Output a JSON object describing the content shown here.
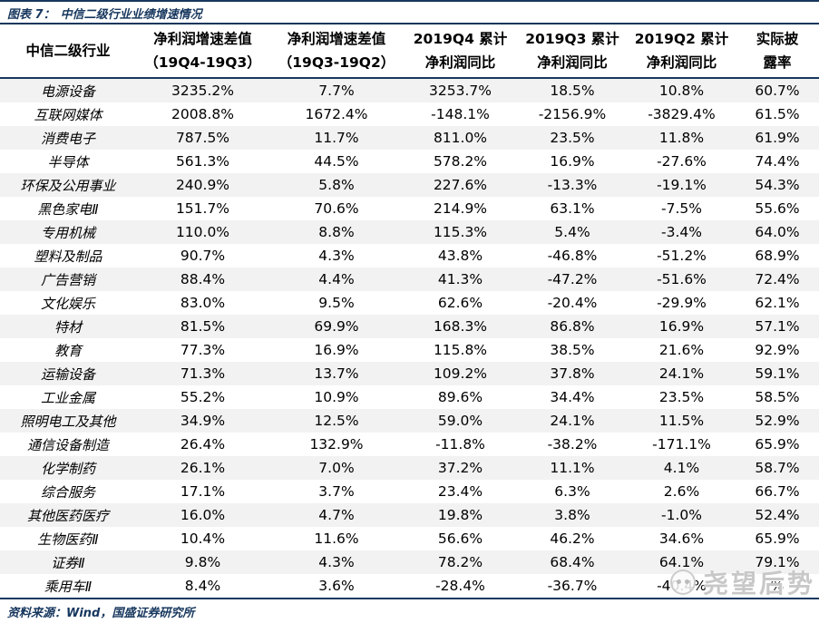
{
  "title": {
    "figure_label": "图表 7：",
    "text": "中信二级行业业绩增速情况"
  },
  "table": {
    "columns": [
      {
        "line1": "中信二级行业",
        "line2": ""
      },
      {
        "line1": "净利润增速差值",
        "line2": "（19Q4-19Q3）"
      },
      {
        "line1": "净利润增速差值",
        "line2": "（19Q3-19Q2）"
      },
      {
        "line1": "2019Q4 累计",
        "line2": "净利润同比"
      },
      {
        "line1": "2019Q3 累计",
        "line2": "净利润同比"
      },
      {
        "line1": "2019Q2 累计",
        "line2": "净利润同比"
      },
      {
        "line1": "实际披",
        "line2": "露率"
      }
    ],
    "rows": [
      [
        "电源设备",
        "3235.2%",
        "7.7%",
        "3253.7%",
        "18.5%",
        "10.8%",
        "60.7%"
      ],
      [
        "互联网媒体",
        "2008.8%",
        "1672.4%",
        "-148.1%",
        "-2156.9%",
        "-3829.4%",
        "61.5%"
      ],
      [
        "消费电子",
        "787.5%",
        "11.7%",
        "811.0%",
        "23.5%",
        "11.8%",
        "61.9%"
      ],
      [
        "半导体",
        "561.3%",
        "44.5%",
        "578.2%",
        "16.9%",
        "-27.6%",
        "74.4%"
      ],
      [
        "环保及公用事业",
        "240.9%",
        "5.8%",
        "227.6%",
        "-13.3%",
        "-19.1%",
        "54.3%"
      ],
      [
        "黑色家电Ⅱ",
        "151.7%",
        "70.6%",
        "214.9%",
        "63.1%",
        "-7.5%",
        "55.6%"
      ],
      [
        "专用机械",
        "110.0%",
        "8.8%",
        "115.3%",
        "5.4%",
        "-3.4%",
        "64.0%"
      ],
      [
        "塑料及制品",
        "90.7%",
        "4.3%",
        "43.8%",
        "-46.8%",
        "-51.2%",
        "68.9%"
      ],
      [
        "广告营销",
        "88.4%",
        "4.4%",
        "41.3%",
        "-47.2%",
        "-51.6%",
        "72.4%"
      ],
      [
        "文化娱乐",
        "83.0%",
        "9.5%",
        "62.6%",
        "-20.4%",
        "-29.9%",
        "62.1%"
      ],
      [
        "特材",
        "81.5%",
        "69.9%",
        "168.3%",
        "86.8%",
        "16.9%",
        "57.1%"
      ],
      [
        "教育",
        "77.3%",
        "16.9%",
        "115.8%",
        "38.5%",
        "21.6%",
        "92.9%"
      ],
      [
        "运输设备",
        "71.3%",
        "13.7%",
        "109.2%",
        "37.8%",
        "24.1%",
        "59.1%"
      ],
      [
        "工业金属",
        "55.2%",
        "10.9%",
        "89.6%",
        "34.4%",
        "23.5%",
        "58.5%"
      ],
      [
        "照明电工及其他",
        "34.9%",
        "12.5%",
        "59.0%",
        "24.1%",
        "11.5%",
        "52.9%"
      ],
      [
        "通信设备制造",
        "26.4%",
        "132.9%",
        "-11.8%",
        "-38.2%",
        "-171.1%",
        "65.9%"
      ],
      [
        "化学制药",
        "26.1%",
        "7.0%",
        "37.2%",
        "11.1%",
        "4.1%",
        "58.7%"
      ],
      [
        "综合服务",
        "17.1%",
        "3.7%",
        "23.4%",
        "6.3%",
        "2.6%",
        "66.7%"
      ],
      [
        "其他医药医疗",
        "16.0%",
        "4.7%",
        "19.8%",
        "3.8%",
        "-1.0%",
        "52.4%"
      ],
      [
        "生物医药Ⅱ",
        "10.4%",
        "11.6%",
        "56.6%",
        "46.2%",
        "34.6%",
        "65.9%"
      ],
      [
        "证券Ⅱ",
        "9.8%",
        "4.3%",
        "78.2%",
        "68.4%",
        "64.1%",
        "79.1%"
      ],
      [
        "乘用车Ⅱ",
        "8.4%",
        "3.6%",
        "-28.4%",
        "-36.7%",
        "-40.4%",
        "%"
      ]
    ]
  },
  "source": "资料来源：Wind，国盛证券研究所",
  "watermark": {
    "text": "尧望后势"
  },
  "colors": {
    "accent": "#17375e",
    "stripe": "#f2f2f2",
    "watermark_gray": "#c3c3c3"
  }
}
